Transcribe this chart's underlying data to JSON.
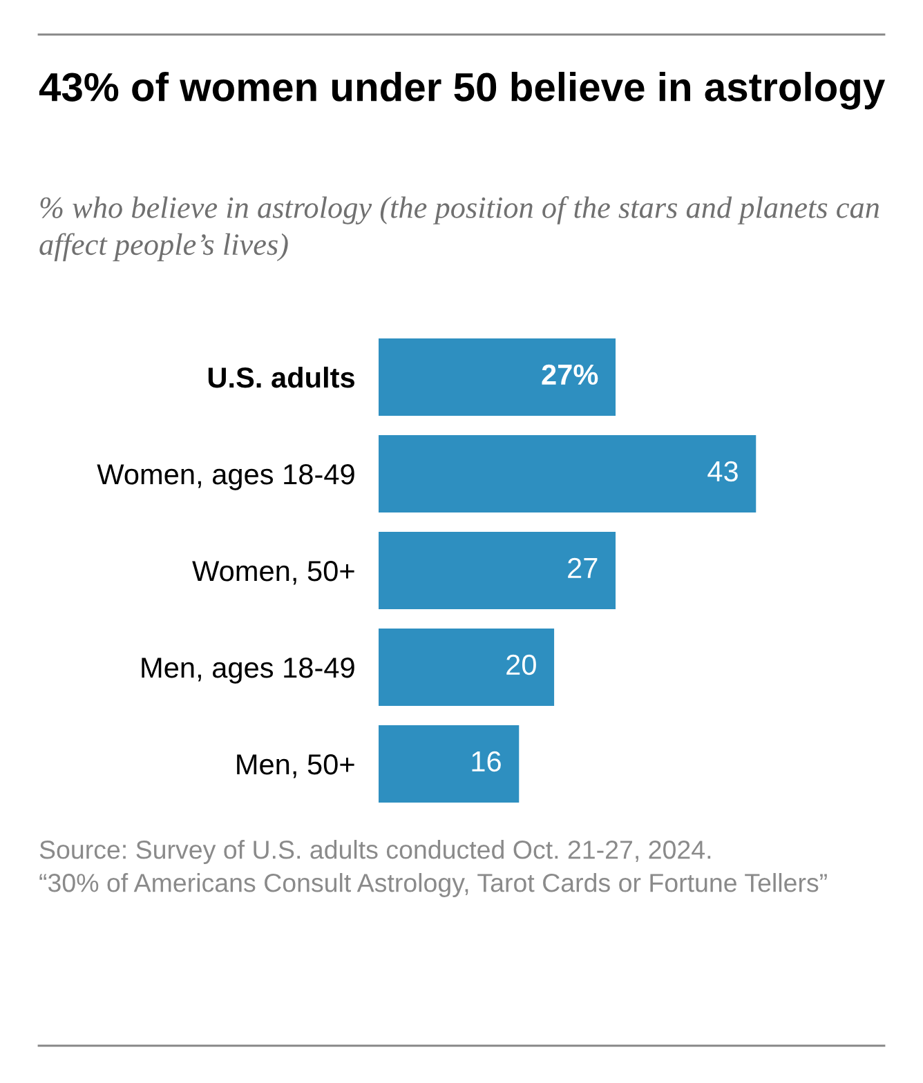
{
  "chart_data": {
    "type": "bar",
    "orientation": "horizontal",
    "title": "43% of women under 50 believe in astrology",
    "subtitle": "% who believe in astrology (the position of the stars and planets can affect people’s lives)",
    "categories": [
      "U.S. adults",
      "Women, ages 18-49",
      "Women, 50+",
      "Men, ages 18-49",
      "Men, 50+"
    ],
    "values": [
      27,
      43,
      27,
      20,
      16
    ],
    "value_labels": [
      "27%",
      "43",
      "27",
      "20",
      "16"
    ],
    "color": "#2e8fc0",
    "grid": false,
    "legend": false,
    "annotations": [
      "Source: Survey of U.S. adults conducted Oct. 21-27, 2024.",
      "“30% of Americans Consult Astrology, Tarot Cards or Fortune Tellers”"
    ]
  }
}
